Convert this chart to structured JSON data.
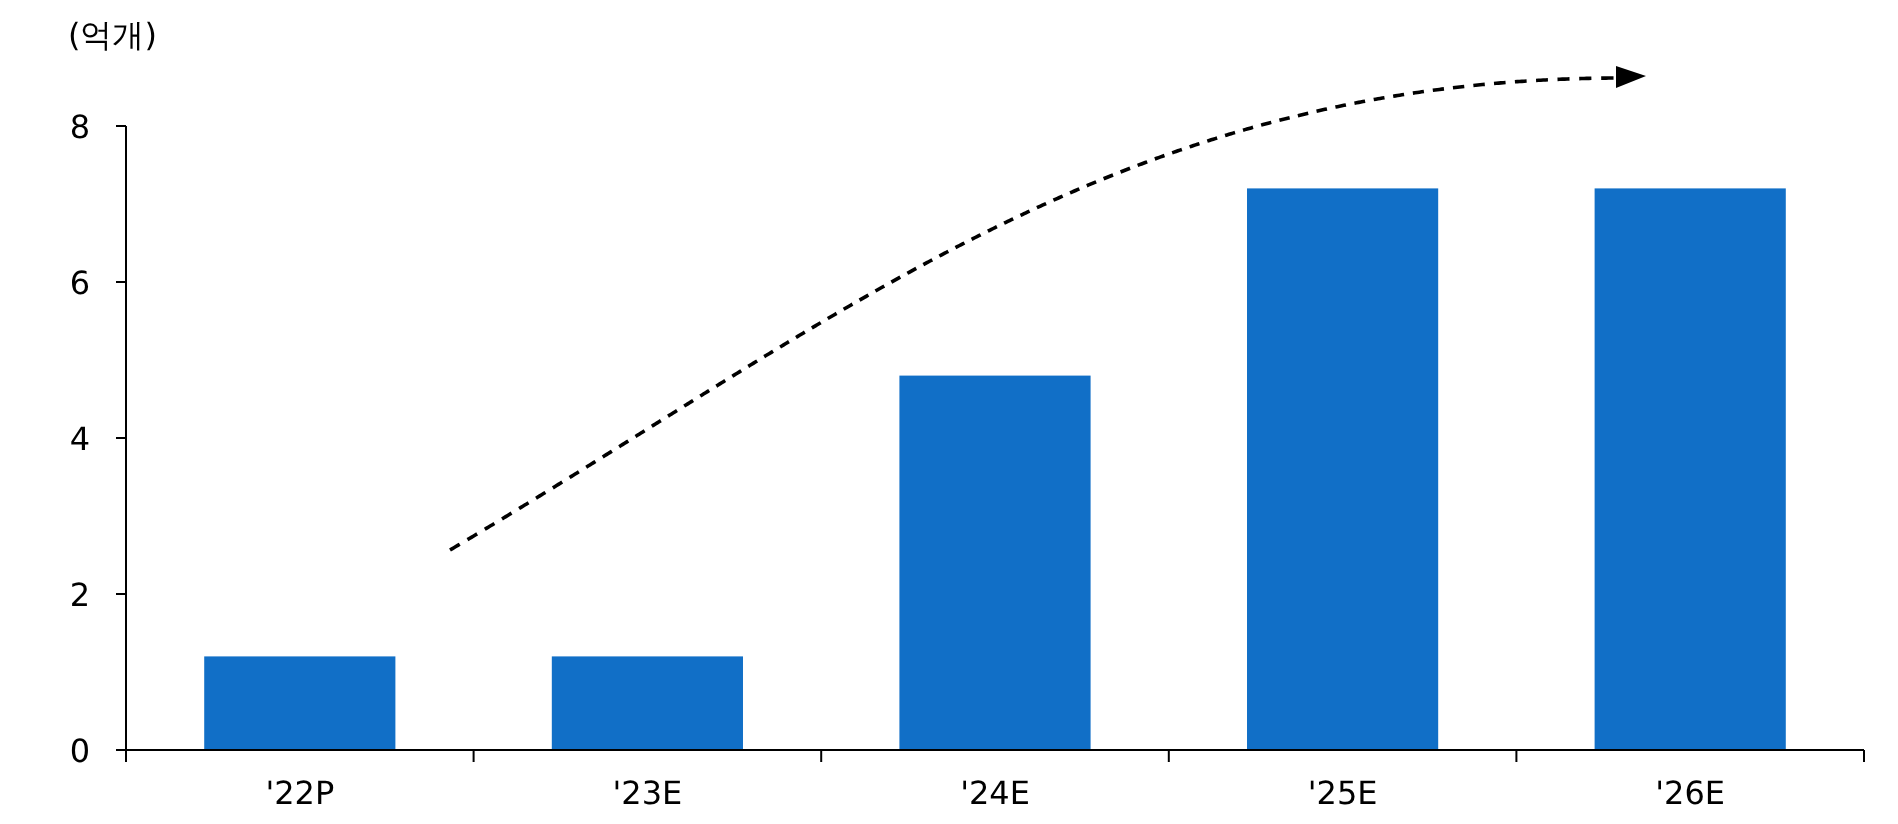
{
  "chart_data": {
    "type": "bar",
    "ylabel": "(억개)",
    "categories": [
      "'22P",
      "'23E",
      "'24E",
      "'25E",
      "'26E"
    ],
    "values": [
      1.2,
      1.2,
      4.8,
      7.2,
      7.2
    ],
    "color": "#116fc7",
    "ylim": [
      0,
      8
    ],
    "yticks": [
      0,
      2,
      4,
      6,
      8
    ],
    "grid": false
  }
}
